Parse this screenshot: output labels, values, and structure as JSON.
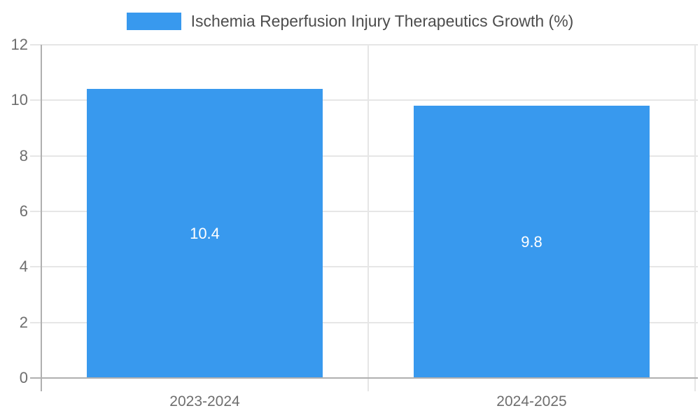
{
  "chart_data": {
    "type": "bar",
    "title": "Ischemia Reperfusion Injury Therapeutics Growth (%)",
    "legend_entries": [
      "Ischemia Reperfusion Injury Therapeutics Growth (%)"
    ],
    "legend_position": "top-center",
    "categories": [
      "2023-2024",
      "2024-2025"
    ],
    "values": [
      10.4,
      9.8
    ],
    "value_labels": [
      "10.4",
      "9.8"
    ],
    "xlabel": "",
    "ylabel": "",
    "ylim": [
      0,
      12
    ],
    "yticks": [
      0,
      2,
      4,
      6,
      8,
      10,
      12
    ],
    "grid": true,
    "colors": {
      "bar": "#3899ee",
      "grid_line": "#e6e6e6",
      "axis_line": "#b0b0b0",
      "tick_label": "#6e6e6e",
      "legend_text": "#4d4d4d",
      "value_label": "#ffffff",
      "background": "#ffffff"
    }
  }
}
